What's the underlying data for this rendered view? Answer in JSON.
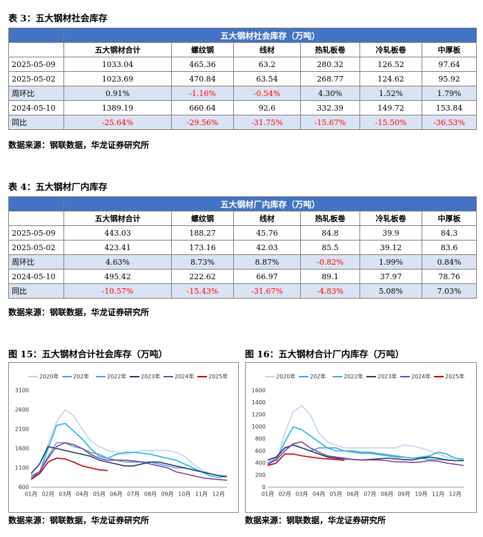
{
  "tables": [
    {
      "caption": "表 3：五大钢材社会库存",
      "header_title": "五大钢材社会库存（万吨）",
      "columns": [
        "五大钢材合计",
        "螺纹钢",
        "线材",
        "热轧板卷",
        "冷轧板卷",
        "中厚板"
      ],
      "rows": [
        [
          "2025-05-09",
          "1033.04",
          "465.36",
          "63.2",
          "280.32",
          "126.52",
          "97.64"
        ],
        [
          "2025-05-02",
          "1023.69",
          "470.84",
          "63.54",
          "268.77",
          "124.62",
          "95.92"
        ],
        [
          "周环比",
          "0.91%",
          "-1.16%",
          "-0.54%",
          "4.30%",
          "1.52%",
          "1.79%"
        ],
        [
          "2024-05-10",
          "1389.19",
          "660.64",
          "92.6",
          "332.39",
          "149.72",
          "153.84"
        ],
        [
          "同比",
          "-25.64%",
          "-29.56%",
          "-31.75%",
          "-15.67%",
          "-15.50%",
          "-36.53%"
        ]
      ],
      "source": "数据来源：钢联数据，华龙证券研究所"
    },
    {
      "caption": "表 4：五大钢材厂内库存",
      "header_title": "五大钢材厂内库存（万吨）",
      "columns": [
        "五大钢材合计",
        "螺纹钢",
        "线材",
        "热轧板卷",
        "冷轧板卷",
        "中厚板"
      ],
      "rows": [
        [
          "2025-05-09",
          "443.03",
          "188.27",
          "45.76",
          "84.8",
          "39.9",
          "84.3"
        ],
        [
          "2025-05-02",
          "423.41",
          "173.16",
          "42.03",
          "85.5",
          "39.12",
          "83.6"
        ],
        [
          "周环比",
          "4.63%",
          "8.73%",
          "8.87%",
          "-0.82%",
          "1.99%",
          "0.84%"
        ],
        [
          "2024-05-10",
          "495.42",
          "222.62",
          "66.97",
          "89.1",
          "37.97",
          "78.76"
        ],
        [
          "同比",
          "-10.57%",
          "-15.43%",
          "-31.67%",
          "-4.83%",
          "5.08%",
          "7.03%"
        ]
      ],
      "source": "数据来源：钢联数据，华龙证券研究所"
    }
  ],
  "negative_color": "#ff0000",
  "chart_data": [
    {
      "type": "line",
      "title": "图 15：五大钢材合计社会库存（万吨）",
      "source": "数据来源：钢联数据，华龙证券研究所",
      "categories": [
        "01月",
        null,
        "02月",
        null,
        "03月",
        null,
        "04月",
        null,
        "05月",
        null,
        "06月",
        null,
        "07月",
        null,
        "08月",
        null,
        "09月",
        null,
        "10月",
        null,
        "11月",
        null,
        "12月",
        null
      ],
      "ylim": [
        600,
        3100
      ],
      "yticks": [
        600,
        1100,
        1600,
        2100,
        2600,
        3100
      ],
      "series": [
        {
          "name": "2020年",
          "color": "#bdd3ee",
          "values": [
            900,
            1000,
            1700,
            2300,
            2600,
            2450,
            2100,
            1800,
            1650,
            1550,
            1500,
            1450,
            1500,
            1550,
            1550,
            1550,
            1550,
            1500,
            1400,
            1200,
            1050,
            950,
            900,
            880
          ]
        },
        {
          "name": "202年",
          "color": "#1fb3ea",
          "values": [
            850,
            950,
            1600,
            2200,
            2250,
            2050,
            1850,
            1600,
            1400,
            1350,
            1450,
            1500,
            1500,
            1480,
            1450,
            1400,
            1350,
            1300,
            1200,
            1100,
            1000,
            900,
            850,
            880
          ]
        },
        {
          "name": "2022年",
          "color": "#5a9fd0",
          "values": [
            900,
            1000,
            1400,
            1750,
            1750,
            1650,
            1600,
            1500,
            1450,
            1350,
            1300,
            1250,
            1250,
            1250,
            1250,
            1200,
            1150,
            1100,
            1100,
            1050,
            1000,
            950,
            900,
            880
          ]
        },
        {
          "name": "2023年",
          "color": "#1f3a60",
          "values": [
            950,
            1200,
            1650,
            1600,
            1550,
            1500,
            1450,
            1400,
            1300,
            1250,
            1200,
            1150,
            1150,
            1200,
            1250,
            1250,
            1200,
            1150,
            1100,
            1050,
            1000,
            950,
            900,
            880
          ]
        },
        {
          "name": "2024年",
          "color": "#7b3fa6",
          "values": [
            850,
            1000,
            1350,
            1650,
            1750,
            1700,
            1600,
            1450,
            1350,
            1300,
            1300,
            1300,
            1280,
            1250,
            1200,
            1150,
            1100,
            1000,
            950,
            900,
            850,
            820,
            800,
            780
          ]
        },
        {
          "name": "2025年",
          "color": "#c00000",
          "values": [
            800,
            950,
            1250,
            1350,
            1330,
            1250,
            1150,
            1100,
            1050,
            1033,
            null,
            null,
            null,
            null,
            null,
            null,
            null,
            null,
            null,
            null,
            null,
            null,
            null,
            null
          ]
        }
      ]
    },
    {
      "type": "line",
      "title": "图 16：五大钢材合计厂内库存（万吨）",
      "source": "数据来源：钢联数据，华龙证券研究所",
      "categories": [
        "01月",
        null,
        "02月",
        null,
        "03月",
        null,
        "04月",
        null,
        "05月",
        null,
        "06月",
        null,
        "07月",
        null,
        "08月",
        null,
        "09月",
        null,
        "10月",
        null,
        "11月",
        null,
        "12月",
        null
      ],
      "ylim": [
        0,
        1600
      ],
      "yticks": [
        0,
        200,
        400,
        600,
        800,
        1000,
        1200,
        1400,
        1600
      ],
      "series": [
        {
          "name": "2020年",
          "color": "#bdd3ee",
          "values": [
            350,
            400,
            900,
            1250,
            1350,
            1200,
            900,
            750,
            700,
            650,
            650,
            650,
            650,
            650,
            650,
            650,
            700,
            680,
            650,
            600,
            550,
            500,
            480,
            470
          ]
        },
        {
          "name": "202年",
          "color": "#1fb3ea",
          "values": [
            400,
            450,
            750,
            1000,
            950,
            850,
            750,
            650,
            600,
            600,
            600,
            580,
            580,
            560,
            540,
            520,
            500,
            480,
            500,
            520,
            580,
            550,
            480,
            460
          ]
        },
        {
          "name": "2022年",
          "color": "#5a9fd0",
          "values": [
            400,
            480,
            650,
            700,
            650,
            600,
            650,
            650,
            650,
            600,
            580,
            560,
            560,
            540,
            520,
            500,
            500,
            480,
            480,
            460,
            460,
            450,
            440,
            440
          ]
        },
        {
          "name": "2023年",
          "color": "#1f3a60",
          "values": [
            450,
            500,
            650,
            700,
            650,
            600,
            550,
            500,
            480,
            470,
            460,
            450,
            460,
            470,
            480,
            470,
            460,
            450,
            480,
            500,
            480,
            450,
            440,
            440
          ]
        },
        {
          "name": "2024年",
          "color": "#7b3fa6",
          "values": [
            380,
            450,
            600,
            720,
            750,
            650,
            580,
            520,
            500,
            480,
            460,
            450,
            450,
            450,
            440,
            420,
            420,
            410,
            420,
            440,
            430,
            400,
            380,
            360
          ]
        },
        {
          "name": "2025年",
          "color": "#c00000",
          "values": [
            360,
            400,
            550,
            550,
            520,
            500,
            480,
            470,
            460,
            443,
            null,
            null,
            null,
            null,
            null,
            null,
            null,
            null,
            null,
            null,
            null,
            null,
            null,
            null
          ]
        }
      ]
    }
  ]
}
